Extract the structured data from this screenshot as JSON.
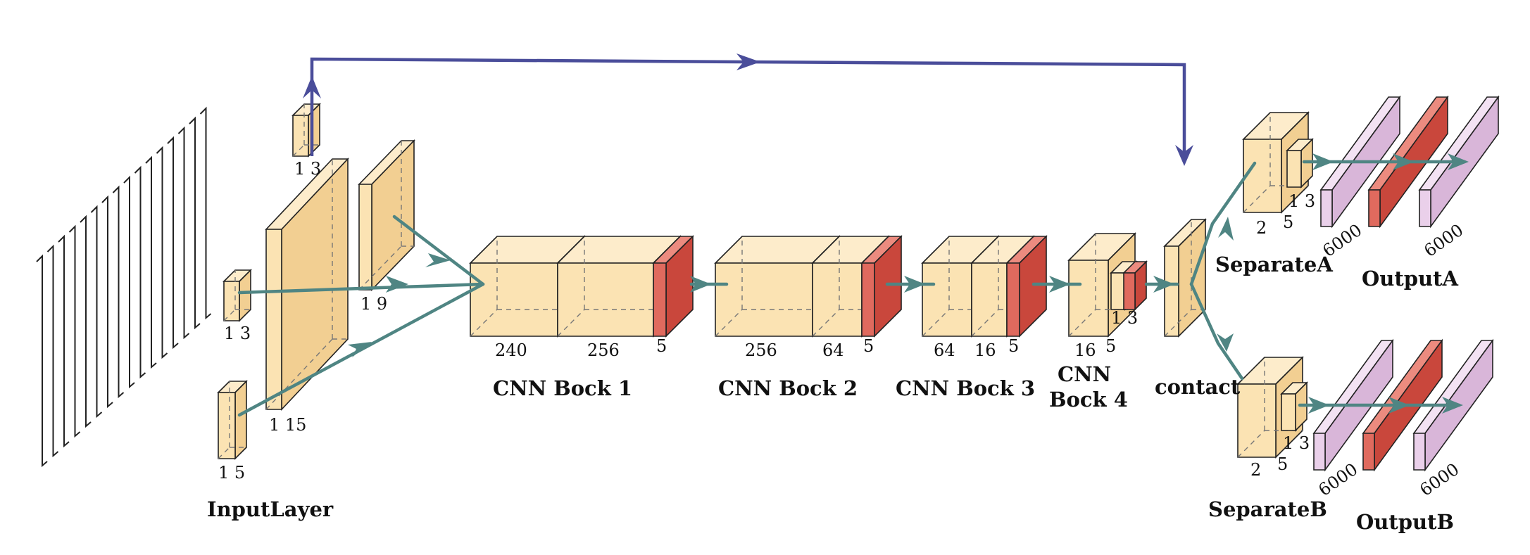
{
  "layers": {
    "input": {
      "title": "InputLayer",
      "small_a": "1 3",
      "small_b": "1 3",
      "small_c": "1 5",
      "big": "1 15",
      "side": "1 9"
    },
    "cnn1": {
      "title": "CNN Bock 1",
      "d1": "240",
      "d2": "256",
      "d3": "5"
    },
    "cnn2": {
      "title": "CNN Bock 2",
      "d1": "256",
      "d2": "64",
      "d3": "5"
    },
    "cnn3": {
      "title": "CNN Bock 3",
      "d1": "64",
      "d2": "16",
      "d3": "5"
    },
    "cnn4": {
      "title_line1": "CNN",
      "title_line2": "Bock 4",
      "d1": "16",
      "d2": "5",
      "d3": "1 3"
    },
    "contact": {
      "title": "contact"
    },
    "separateA": {
      "title": "SeparateA",
      "d1": "2",
      "d2": "5",
      "d3": "1 3"
    },
    "separateB": {
      "title": "SeparateB",
      "d1": "2",
      "d2": "5",
      "d3": "1 3"
    },
    "outputA": {
      "title": "OutputA",
      "d1": "6000",
      "d2": "6000"
    },
    "outputB": {
      "title": "OutputB",
      "d1": "6000",
      "d2": "6000"
    }
  },
  "colors": {
    "block": "#fbe3b3",
    "block_red": "#e06a5e",
    "block_purple": "#ead0ea",
    "arrow_teal": "#4f8583",
    "arrow_navy": "#4a4d9a"
  }
}
